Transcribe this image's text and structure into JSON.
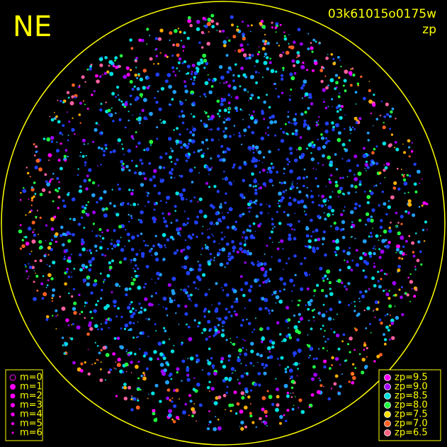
{
  "header": {
    "direction": "NE",
    "frame_id": "03k61015o0175w",
    "mode": "zp"
  },
  "magnitude_legend": {
    "items": [
      "m=0",
      "m=1",
      "m=2",
      "m=3",
      "m=4",
      "m=5",
      "m=6"
    ]
  },
  "zp_legend": {
    "items": [
      "zp=9.5",
      "zp=9.0",
      "zp=8.5",
      "zp=8.0",
      "zp=7.5",
      "zp=7.0",
      "zp=6.5"
    ]
  }
}
